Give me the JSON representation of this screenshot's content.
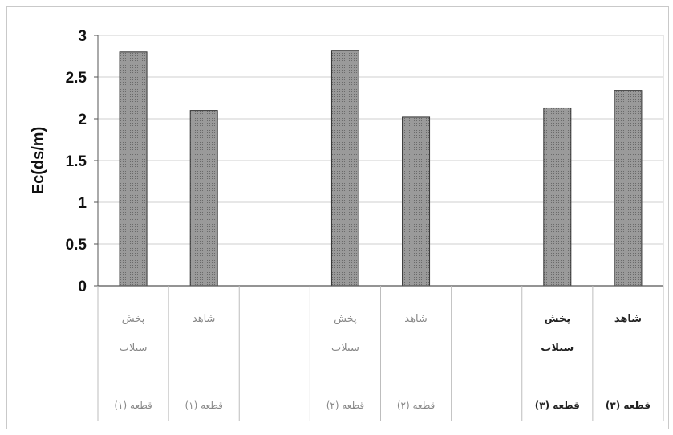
{
  "chart_data": {
    "type": "bar",
    "title": "",
    "ylabel": "Ec(ds/m)",
    "xlabel": "",
    "ylim": [
      0,
      3
    ],
    "yticks": [
      "0",
      "0.5",
      "1",
      "1.5",
      "2",
      "2.5",
      "3"
    ],
    "grid": true,
    "categories": [
      {
        "line1": "پخش",
        "line2": "سیلاب",
        "plot": "قطعه (۱)"
      },
      {
        "line1": "شاهد",
        "line2": "",
        "plot": "قطعه (۱)"
      },
      {
        "line1": "",
        "line2": "",
        "plot": ""
      },
      {
        "line1": "پخش",
        "line2": "سیلاب",
        "plot": "قطعه (۲)"
      },
      {
        "line1": "شاهد",
        "line2": "",
        "plot": "قطعه (۲)"
      },
      {
        "line1": "",
        "line2": "",
        "plot": ""
      },
      {
        "line1": "پخش",
        "line2": "سیلاب",
        "plot": "قطعه (۳)"
      },
      {
        "line1": "شاهد",
        "line2": "",
        "plot": "قطعه (۳)"
      }
    ],
    "values": [
      2.8,
      2.1,
      null,
      2.82,
      2.02,
      null,
      2.13,
      2.34
    ],
    "dark_label_indices": [
      6,
      7
    ],
    "colors": {
      "bar": "#8f8f8f",
      "bar_edge": "#333333",
      "grid": "#cfcfcf",
      "axis": "#555555"
    }
  }
}
